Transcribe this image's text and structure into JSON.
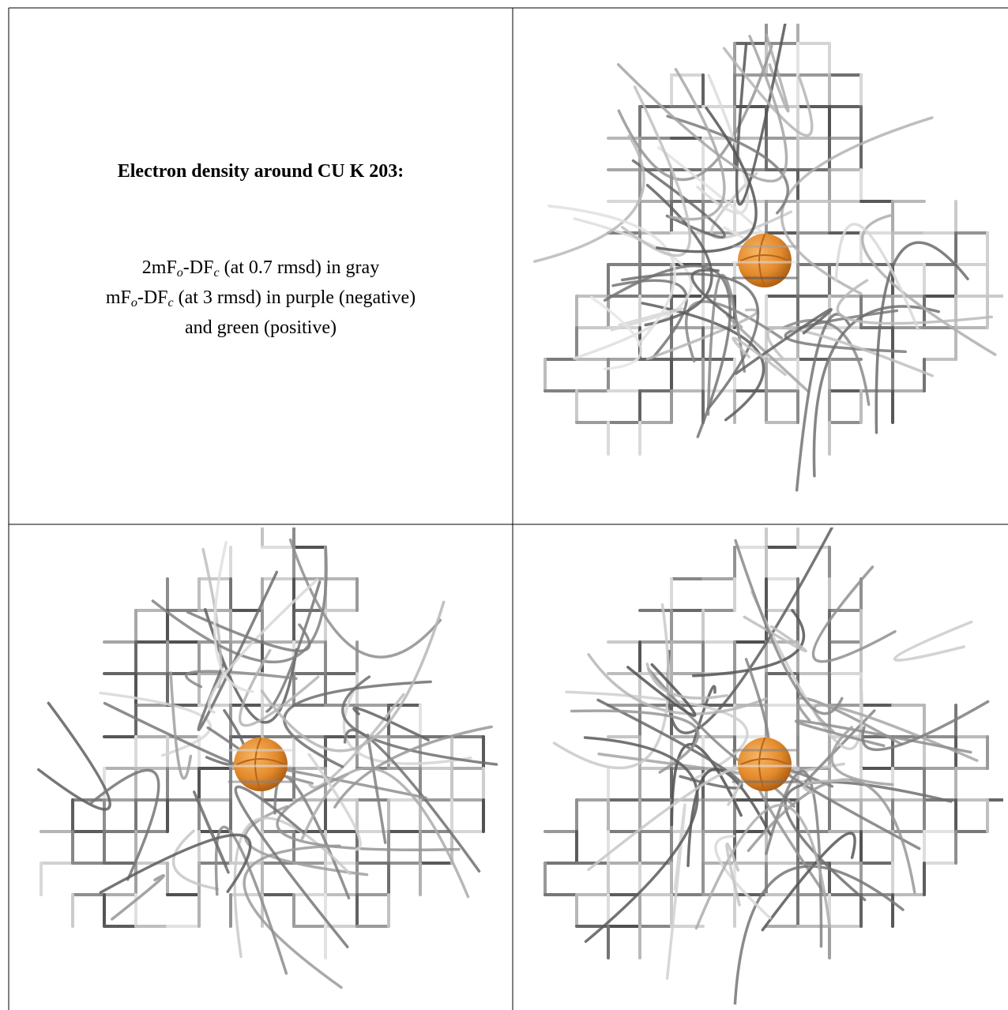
{
  "figure": {
    "title": "Electron density around CU K 203:",
    "description": [
      [
        {
          "text": "2mF"
        },
        {
          "text": "o",
          "sub": true
        },
        {
          "text": "-DF"
        },
        {
          "text": "c",
          "sub": true
        },
        {
          "text": " (at 0.7 rmsd) in gray"
        }
      ],
      [
        {
          "text": "mF"
        },
        {
          "text": "o",
          "sub": true
        },
        {
          "text": "-DF"
        },
        {
          "text": "c",
          "sub": true
        },
        {
          "text": " (at 3 rmsd) in purple (negative)"
        }
      ],
      [
        {
          "text": "and green (positive)"
        }
      ]
    ]
  }
}
